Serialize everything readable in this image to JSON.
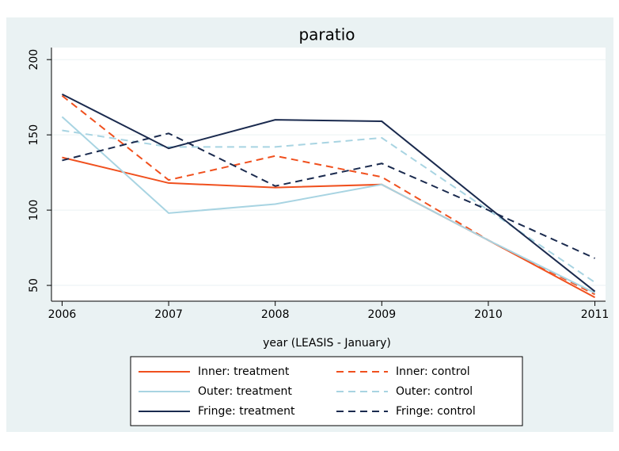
{
  "chart_data": {
    "type": "line",
    "title": "paratio",
    "xlabel": "year (LEASIS - January)",
    "x": [
      2006,
      2007,
      2008,
      2009,
      2010,
      2011
    ],
    "xlim": [
      2005.9,
      2011.1
    ],
    "xticks": [
      2006,
      2007,
      2008,
      2009,
      2010,
      2011
    ],
    "ylim": [
      39.5,
      208
    ],
    "yticks": [
      50,
      100,
      150,
      200
    ],
    "grid": true,
    "legend": "bottom",
    "series": [
      {
        "name": "Inner: treatment",
        "color": "#f0501e",
        "dash": false,
        "values": [
          135,
          118,
          115,
          117,
          80,
          42
        ]
      },
      {
        "name": "Inner: control",
        "color": "#f0501e",
        "dash": true,
        "values": [
          176,
          120,
          136,
          122,
          80,
          44
        ]
      },
      {
        "name": "Outer: treatment",
        "color": "#a8d4e2",
        "dash": false,
        "values": [
          162,
          98,
          104,
          117,
          80,
          45
        ]
      },
      {
        "name": "Outer: control",
        "color": "#a8d4e2",
        "dash": true,
        "values": [
          153,
          142,
          142,
          148,
          100,
          52
        ]
      },
      {
        "name": "Fringe: treatment",
        "color": "#1a2a4e",
        "dash": false,
        "values": [
          177,
          141,
          160,
          159,
          102,
          46
        ]
      },
      {
        "name": "Fringe: control",
        "color": "#1a2a4e",
        "dash": true,
        "values": [
          133,
          151,
          116,
          131,
          100,
          68
        ]
      }
    ]
  }
}
